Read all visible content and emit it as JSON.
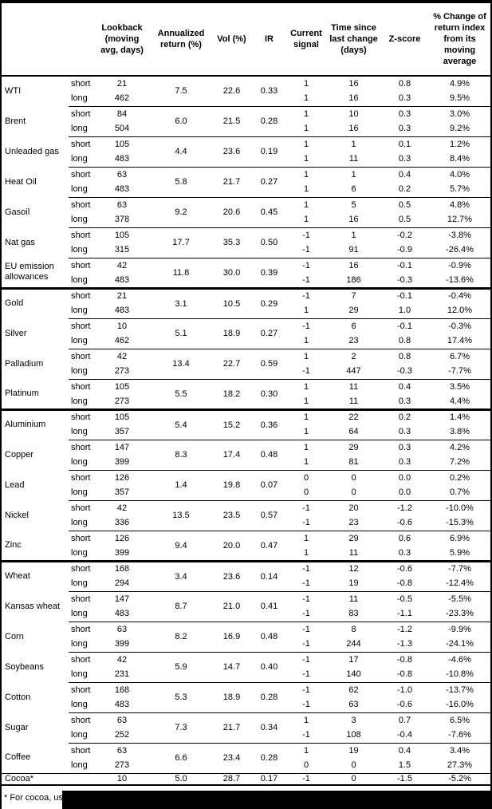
{
  "colors": {
    "background": "#ffffff",
    "text": "#000000",
    "border": "#000000",
    "redaction": "#000000"
  },
  "table": {
    "columns": {
      "name": "",
      "sub": "",
      "lookback": "Lookback\n(moving\navg, days)",
      "annualized": "Annualized\nreturn (%)",
      "vol": "Vol (%)",
      "ir": "IR",
      "signal": "Current\nsignal",
      "time": "Time since\nlast change\n(days)",
      "zscore": "Z-score",
      "pct": "% Change of\nreturn index\nfrom its\nmoving\naverage"
    },
    "groups": [
      {
        "name": "WTI",
        "annualized": "7.5",
        "vol": "22.6",
        "ir": "0.33",
        "rows": [
          {
            "sub": "short",
            "lookback": "21",
            "signal": "1",
            "time": "16",
            "zscore": "0.8",
            "pct": "4.9%"
          },
          {
            "sub": "long",
            "lookback": "462",
            "signal": "1",
            "time": "16",
            "zscore": "0.3",
            "pct": "9.5%"
          }
        ]
      },
      {
        "name": "Brent",
        "annualized": "6.0",
        "vol": "21.5",
        "ir": "0.28",
        "rows": [
          {
            "sub": "short",
            "lookback": "84",
            "signal": "1",
            "time": "10",
            "zscore": "0.3",
            "pct": "3.0%"
          },
          {
            "sub": "long",
            "lookback": "504",
            "signal": "1",
            "time": "16",
            "zscore": "0.3",
            "pct": "9.2%"
          }
        ]
      },
      {
        "name": "Unleaded gas",
        "annualized": "4.4",
        "vol": "23.6",
        "ir": "0.19",
        "rows": [
          {
            "sub": "short",
            "lookback": "105",
            "signal": "1",
            "time": "1",
            "zscore": "0.1",
            "pct": "1.2%"
          },
          {
            "sub": "long",
            "lookback": "483",
            "signal": "1",
            "time": "11",
            "zscore": "0.3",
            "pct": "8.4%"
          }
        ]
      },
      {
        "name": "Heat Oil",
        "annualized": "5.8",
        "vol": "21.7",
        "ir": "0.27",
        "rows": [
          {
            "sub": "short",
            "lookback": "63",
            "signal": "1",
            "time": "1",
            "zscore": "0.4",
            "pct": "4.0%"
          },
          {
            "sub": "long",
            "lookback": "483",
            "signal": "1",
            "time": "6",
            "zscore": "0.2",
            "pct": "5.7%"
          }
        ]
      },
      {
        "name": "Gasoil",
        "annualized": "9.2",
        "vol": "20.6",
        "ir": "0.45",
        "rows": [
          {
            "sub": "short",
            "lookback": "63",
            "signal": "1",
            "time": "5",
            "zscore": "0.5",
            "pct": "4.8%"
          },
          {
            "sub": "long",
            "lookback": "378",
            "signal": "1",
            "time": "16",
            "zscore": "0.5",
            "pct": "12.7%"
          }
        ]
      },
      {
        "name": "Nat gas",
        "annualized": "17.7",
        "vol": "35.3",
        "ir": "0.50",
        "rows": [
          {
            "sub": "short",
            "lookback": "105",
            "signal": "-1",
            "time": "1",
            "zscore": "-0.2",
            "pct": "-3.8%"
          },
          {
            "sub": "long",
            "lookback": "315",
            "signal": "-1",
            "time": "91",
            "zscore": "-0.9",
            "pct": "-26.4%"
          }
        ]
      },
      {
        "name": "EU emission allowances",
        "annualized": "11.8",
        "vol": "30.0",
        "ir": "0.39",
        "rows": [
          {
            "sub": "short",
            "lookback": "42",
            "signal": "-1",
            "time": "16",
            "zscore": "-0.1",
            "pct": "-0.9%"
          },
          {
            "sub": "long",
            "lookback": "483",
            "signal": "-1",
            "time": "186",
            "zscore": "-0.3",
            "pct": "-13.6%"
          }
        ]
      },
      {
        "name": "Gold",
        "section_start": true,
        "annualized": "3.1",
        "vol": "10.5",
        "ir": "0.29",
        "rows": [
          {
            "sub": "short",
            "lookback": "21",
            "signal": "-1",
            "time": "7",
            "zscore": "-0.1",
            "pct": "-0.4%"
          },
          {
            "sub": "long",
            "lookback": "483",
            "signal": "1",
            "time": "29",
            "zscore": "1.0",
            "pct": "12.0%"
          }
        ]
      },
      {
        "name": "Silver",
        "annualized": "5.1",
        "vol": "18.9",
        "ir": "0.27",
        "rows": [
          {
            "sub": "short",
            "lookback": "10",
            "signal": "-1",
            "time": "6",
            "zscore": "-0.1",
            "pct": "-0.3%"
          },
          {
            "sub": "long",
            "lookback": "462",
            "signal": "1",
            "time": "23",
            "zscore": "0.8",
            "pct": "17.4%"
          }
        ]
      },
      {
        "name": "Palladium",
        "annualized": "13.4",
        "vol": "22.7",
        "ir": "0.59",
        "rows": [
          {
            "sub": "short",
            "lookback": "42",
            "signal": "1",
            "time": "2",
            "zscore": "0.8",
            "pct": "6.7%"
          },
          {
            "sub": "long",
            "lookback": "273",
            "signal": "-1",
            "time": "447",
            "zscore": "-0.3",
            "pct": "-7.7%"
          }
        ]
      },
      {
        "name": "Platinum",
        "annualized": "5.5",
        "vol": "18.2",
        "ir": "0.30",
        "rows": [
          {
            "sub": "short",
            "lookback": "105",
            "signal": "1",
            "time": "11",
            "zscore": "0.4",
            "pct": "3.5%"
          },
          {
            "sub": "long",
            "lookback": "273",
            "signal": "1",
            "time": "11",
            "zscore": "0.3",
            "pct": "4.4%"
          }
        ]
      },
      {
        "name": "Aluminium",
        "section_start": true,
        "annualized": "5.4",
        "vol": "15.2",
        "ir": "0.36",
        "rows": [
          {
            "sub": "short",
            "lookback": "105",
            "signal": "1",
            "time": "22",
            "zscore": "0.2",
            "pct": "1.4%"
          },
          {
            "sub": "long",
            "lookback": "357",
            "signal": "1",
            "time": "64",
            "zscore": "0.3",
            "pct": "3.8%"
          }
        ]
      },
      {
        "name": "Copper",
        "annualized": "8.3",
        "vol": "17.4",
        "ir": "0.48",
        "rows": [
          {
            "sub": "short",
            "lookback": "147",
            "signal": "1",
            "time": "29",
            "zscore": "0.3",
            "pct": "4.2%"
          },
          {
            "sub": "long",
            "lookback": "399",
            "signal": "1",
            "time": "81",
            "zscore": "0.3",
            "pct": "7.2%"
          }
        ]
      },
      {
        "name": "Lead",
        "annualized": "1.4",
        "vol": "19.8",
        "ir": "0.07",
        "rows": [
          {
            "sub": "short",
            "lookback": "126",
            "signal": "0",
            "time": "0",
            "zscore": "0.0",
            "pct": "0.2%"
          },
          {
            "sub": "long",
            "lookback": "357",
            "signal": "0",
            "time": "0",
            "zscore": "0.0",
            "pct": "0.7%"
          }
        ]
      },
      {
        "name": "Nickel",
        "annualized": "13.5",
        "vol": "23.5",
        "ir": "0.57",
        "rows": [
          {
            "sub": "short",
            "lookback": "42",
            "signal": "-1",
            "time": "20",
            "zscore": "-1.2",
            "pct": "-10.0%"
          },
          {
            "sub": "long",
            "lookback": "336",
            "signal": "-1",
            "time": "23",
            "zscore": "-0.6",
            "pct": "-15.3%"
          }
        ]
      },
      {
        "name": "Zinc",
        "annualized": "9.4",
        "vol": "20.0",
        "ir": "0.47",
        "rows": [
          {
            "sub": "short",
            "lookback": "126",
            "signal": "1",
            "time": "29",
            "zscore": "0.6",
            "pct": "6.9%"
          },
          {
            "sub": "long",
            "lookback": "399",
            "signal": "1",
            "time": "11",
            "zscore": "0.3",
            "pct": "5.9%"
          }
        ]
      },
      {
        "name": "Wheat",
        "section_start": true,
        "annualized": "3.4",
        "vol": "23.6",
        "ir": "0.14",
        "rows": [
          {
            "sub": "short",
            "lookback": "168",
            "signal": "-1",
            "time": "12",
            "zscore": "-0.6",
            "pct": "-7.7%"
          },
          {
            "sub": "long",
            "lookback": "294",
            "signal": "-1",
            "time": "19",
            "zscore": "-0.8",
            "pct": "-12.4%"
          }
        ]
      },
      {
        "name": "Kansas wheat",
        "annualized": "8.7",
        "vol": "21.0",
        "ir": "0.41",
        "rows": [
          {
            "sub": "short",
            "lookback": "147",
            "signal": "-1",
            "time": "11",
            "zscore": "-0.5",
            "pct": "-5.5%"
          },
          {
            "sub": "long",
            "lookback": "483",
            "signal": "-1",
            "time": "83",
            "zscore": "-1.1",
            "pct": "-23.3%"
          }
        ]
      },
      {
        "name": "Corn",
        "annualized": "8.2",
        "vol": "16.9",
        "ir": "0.48",
        "rows": [
          {
            "sub": "short",
            "lookback": "63",
            "signal": "-1",
            "time": "8",
            "zscore": "-1.2",
            "pct": "-9.9%"
          },
          {
            "sub": "long",
            "lookback": "399",
            "signal": "-1",
            "time": "244",
            "zscore": "-1.3",
            "pct": "-24.1%"
          }
        ]
      },
      {
        "name": "Soybeans",
        "annualized": "5.9",
        "vol": "14.7",
        "ir": "0.40",
        "rows": [
          {
            "sub": "short",
            "lookback": "42",
            "signal": "-1",
            "time": "17",
            "zscore": "-0.8",
            "pct": "-4.6%"
          },
          {
            "sub": "long",
            "lookback": "231",
            "signal": "-1",
            "time": "140",
            "zscore": "-0.8",
            "pct": "-10.8%"
          }
        ]
      },
      {
        "name": "Cotton",
        "annualized": "5.3",
        "vol": "18.9",
        "ir": "0.28",
        "rows": [
          {
            "sub": "short",
            "lookback": "168",
            "signal": "-1",
            "time": "62",
            "zscore": "-1.0",
            "pct": "-13.7%"
          },
          {
            "sub": "long",
            "lookback": "483",
            "signal": "-1",
            "time": "63",
            "zscore": "-0.6",
            "pct": "-16.0%"
          }
        ]
      },
      {
        "name": "Sugar",
        "annualized": "7.3",
        "vol": "21.7",
        "ir": "0.34",
        "rows": [
          {
            "sub": "short",
            "lookback": "63",
            "signal": "1",
            "time": "3",
            "zscore": "0.7",
            "pct": "6.5%"
          },
          {
            "sub": "long",
            "lookback": "252",
            "signal": "-1",
            "time": "108",
            "zscore": "-0.4",
            "pct": "-7.6%"
          }
        ]
      },
      {
        "name": "Coffee",
        "annualized": "6.6",
        "vol": "23.4",
        "ir": "0.28",
        "rows": [
          {
            "sub": "short",
            "lookback": "63",
            "signal": "1",
            "time": "19",
            "zscore": "0.4",
            "pct": "3.4%"
          },
          {
            "sub": "long",
            "lookback": "273",
            "signal": "0",
            "time": "0",
            "zscore": "1.5",
            "pct": "27.3%"
          }
        ]
      },
      {
        "name": "Cocoa*",
        "single": true,
        "full_sep": true,
        "annualized": "5.0",
        "vol": "28.7",
        "ir": "0.17",
        "rows": [
          {
            "sub": "",
            "lookback": "10",
            "signal": "-1",
            "time": "0",
            "zscore": "-1.5",
            "pct": "-5.2%"
          }
        ]
      }
    ]
  },
  "footnote": {
    "text": "* For cocoa, uses",
    "redacted": true
  }
}
